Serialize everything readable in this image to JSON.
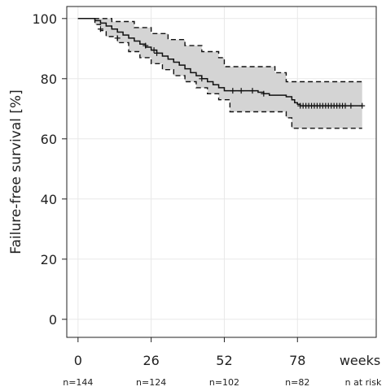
{
  "chart_data": {
    "type": "line",
    "subtype": "kaplan-meier",
    "ylabel": "Failure-free survival [%]",
    "x_unit": "weeks",
    "risk_label": "n at risk",
    "xlim": [
      -4,
      106
    ],
    "ylim": [
      -6,
      104
    ],
    "x_ticks": [
      0,
      26,
      52,
      78
    ],
    "y_ticks": [
      0,
      20,
      40,
      60,
      80,
      100
    ],
    "grid": true,
    "numbers_at_risk": [
      {
        "x": 0,
        "label": "n=144"
      },
      {
        "x": 26,
        "label": "n=124"
      },
      {
        "x": 52,
        "label": "n=102"
      },
      {
        "x": 78,
        "label": "n=82"
      }
    ],
    "series": [
      {
        "role": "estimate",
        "style": "solid",
        "x": [
          0,
          6,
          8,
          10,
          12,
          14,
          16,
          18,
          20,
          22,
          24,
          26,
          28,
          30,
          32,
          34,
          36,
          38,
          40,
          42,
          44,
          46,
          48,
          50,
          52,
          55,
          58,
          62,
          64,
          66,
          68,
          74,
          76,
          77,
          78,
          79,
          101
        ],
        "y": [
          100,
          99.3,
          98.5,
          97.5,
          96.5,
          95.5,
          94.5,
          93.5,
          92.5,
          91.5,
          90.5,
          89.5,
          88.5,
          87.5,
          86.5,
          85.5,
          84.5,
          83.3,
          82,
          81,
          80,
          79,
          78,
          77,
          76,
          76,
          76,
          76,
          75.5,
          75,
          74.5,
          74,
          73,
          72,
          71.5,
          71,
          71
        ]
      },
      {
        "role": "upper_ci",
        "style": "dashed",
        "x": [
          0,
          10,
          12,
          20,
          26,
          32,
          38,
          44,
          50,
          52,
          64,
          70,
          74,
          78,
          101
        ],
        "y": [
          100,
          100,
          99,
          97,
          95,
          93,
          91,
          89,
          87,
          84,
          84,
          82,
          79,
          79,
          79
        ]
      },
      {
        "role": "lower_ci",
        "style": "dashed",
        "x": [
          0,
          6,
          8,
          10,
          14,
          18,
          22,
          26,
          30,
          34,
          38,
          42,
          46,
          50,
          54,
          58,
          64,
          70,
          74,
          76,
          101
        ],
        "y": [
          100,
          98,
          96,
          94,
          92,
          89,
          87,
          85,
          83,
          81,
          79,
          77,
          75,
          73,
          69,
          69,
          69,
          69,
          67,
          63.5,
          63.5
        ]
      }
    ],
    "censor_marks": {
      "x": [
        8,
        14,
        24,
        27,
        28,
        44,
        55,
        58,
        62,
        66,
        79,
        80,
        81,
        82,
        83,
        84,
        85,
        86,
        87,
        88,
        89,
        90,
        91,
        92,
        93,
        94,
        95,
        97,
        101
      ],
      "y": [
        96.5,
        93.5,
        91,
        89.5,
        88.5,
        80,
        76,
        76,
        76,
        75,
        71,
        71,
        71,
        71,
        71,
        71,
        71,
        71,
        71,
        71,
        71,
        71,
        71,
        71,
        71,
        71,
        71,
        71,
        71
      ]
    },
    "colors": {
      "band_fill": "#d4d4d4",
      "line": "#111111",
      "grid": "#e8e8e8",
      "frame": "#222222"
    }
  }
}
